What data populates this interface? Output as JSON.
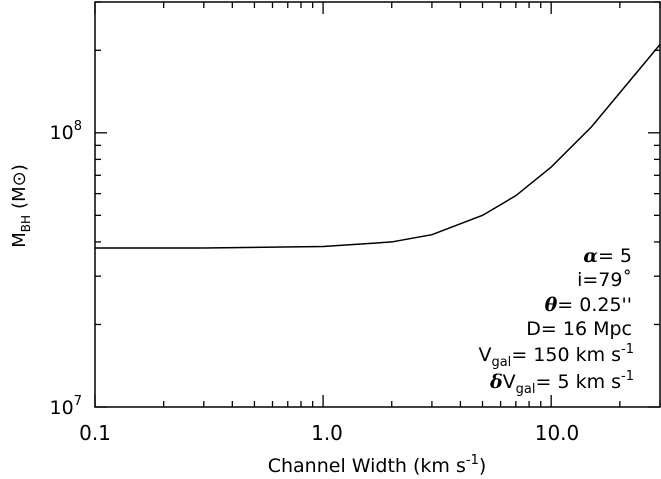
{
  "chart_data": {
    "type": "line",
    "xscale": "log",
    "yscale": "log",
    "xlim": [
      0.1,
      30
    ],
    "ylim": [
      10000000,
      300000000
    ],
    "grid": false,
    "xlabel": "Channel Width (km s⁻¹)",
    "ylabel": "M_BH (M⊙)",
    "x_ticklabels": [
      "0.1",
      "1.0",
      "10.0"
    ],
    "y_ticklabels": [
      {
        "base": "10",
        "exp": "7"
      },
      {
        "base": "10",
        "exp": "8"
      }
    ],
    "series": [
      {
        "x": [
          0.1,
          0.3,
          1.0,
          2.0,
          3.0,
          5.0,
          7.0,
          10.0,
          15.0,
          20.0,
          30.0
        ],
        "y": [
          38000000,
          38000000,
          38500000,
          40000000,
          42500000,
          50000000,
          59000000,
          75000000,
          105000000,
          140000000,
          210000000
        ]
      }
    ],
    "annotations": {
      "alpha": {
        "sym": "α",
        "rest": "= 5"
      },
      "inc": "i=79˚",
      "theta": {
        "sym": "θ",
        "rest": "= 0.25''"
      },
      "dist": "D= 16 Mpc",
      "vgal": {
        "main": "V",
        "sub": "gal",
        "rest": "= 150 km s",
        "sup": "-1"
      },
      "dvgal": {
        "delta": "δ",
        "main": "V",
        "sub": "gal",
        "rest": "= 5 km s",
        "sup": "-1"
      }
    },
    "ylabel_parts": {
      "main": "M",
      "sub": "BH",
      "unit": "(M⊙)"
    },
    "xlabel_parts": {
      "main": "Channel Width (km s",
      "sup": "-1",
      "close": ")"
    }
  }
}
